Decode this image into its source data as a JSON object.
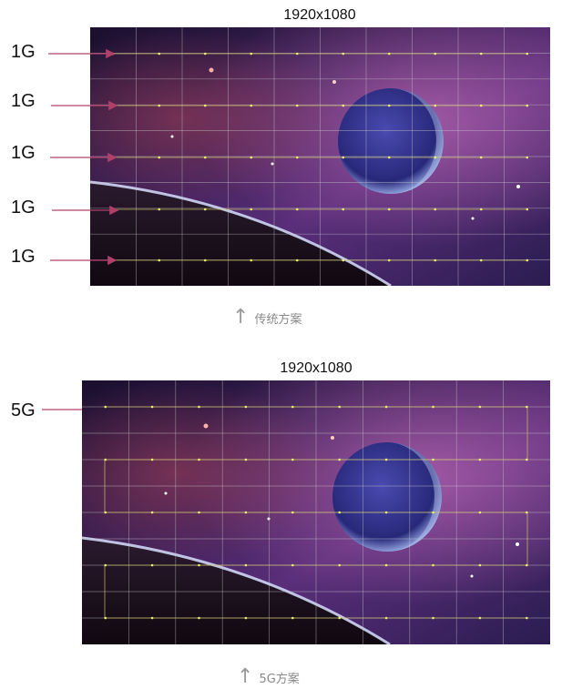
{
  "top_panel": {
    "resolution": "1920x1080",
    "port_labels": [
      "1G",
      "1G",
      "1G",
      "1G",
      "1G"
    ],
    "caption": "传统方案"
  },
  "bottom_panel": {
    "resolution": "1920x1080",
    "port_labels": [
      "5G"
    ],
    "caption": "5G方案"
  },
  "colors": {
    "arrow": "#b0406a",
    "wiring": "#d8d060",
    "grid": "#c8c8c8"
  }
}
